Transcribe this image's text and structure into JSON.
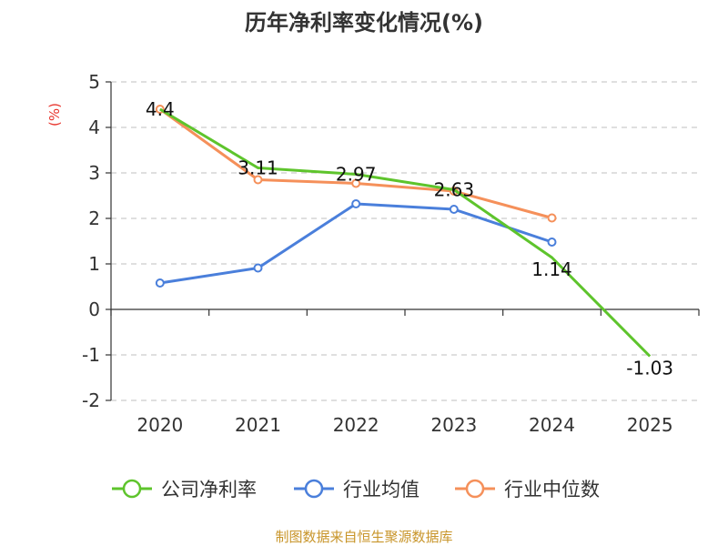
{
  "chart_data": {
    "type": "line",
    "title": "历年净利率变化情况(%)",
    "ylabel": "(%)",
    "xlabel": "",
    "categories": [
      "2020",
      "2021",
      "2022",
      "2023",
      "2024",
      "2025"
    ],
    "ylim": [
      -2,
      5
    ],
    "yticks": [
      5,
      4,
      3,
      2,
      1,
      0,
      -1,
      -2
    ],
    "grid": true,
    "legend_position": "bottom",
    "series": [
      {
        "name": "公司净利率",
        "color": "#5ec42c",
        "values": [
          4.4,
          3.11,
          2.97,
          2.63,
          1.14,
          -1.03
        ],
        "labels": [
          "4.4",
          "3.11",
          "2.97",
          "2.63",
          "1.14",
          "-1.03"
        ]
      },
      {
        "name": "行业均值",
        "color": "#4a7fdb",
        "values": [
          0.58,
          0.91,
          2.32,
          2.2,
          1.48,
          null
        ],
        "labels": null
      },
      {
        "name": "行业中位数",
        "color": "#f5905a",
        "values": [
          4.4,
          2.85,
          2.77,
          2.6,
          2.01,
          null
        ],
        "labels": null
      }
    ]
  },
  "footer": {
    "source": "制图数据来自恒生聚源数据库"
  }
}
